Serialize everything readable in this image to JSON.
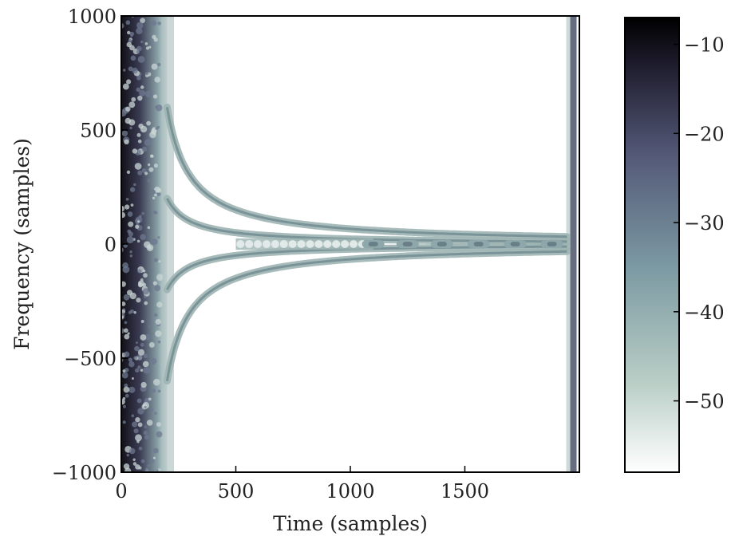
{
  "chart_data": {
    "type": "heatmap",
    "title": "",
    "xlabel": "Time (samples)",
    "ylabel": "Frequency (samples)",
    "xlim": [
      0,
      2000
    ],
    "ylim": [
      -1000,
      1000
    ],
    "xticks": [
      0,
      500,
      1000,
      1500
    ],
    "yticks": [
      -1000,
      -500,
      0,
      500,
      1000
    ],
    "xtick_labels": [
      "0",
      "500",
      "1000",
      "1500"
    ],
    "ytick_labels": [
      "−1000",
      "−500",
      "0",
      "500",
      "1000"
    ],
    "colorbar": {
      "range": [
        -58,
        -7
      ],
      "ticks": [
        -10,
        -20,
        -30,
        -40,
        -50
      ],
      "tick_labels": [
        "−10",
        "−20",
        "−30",
        "−40",
        "−50"
      ],
      "colormap": [
        "#ffffff",
        "#b8cdc5",
        "#7c9aa3",
        "#535877",
        "#1d1b2b",
        "#000000"
      ]
    },
    "grid": false,
    "features": {
      "dense_region_time": [
        0,
        200
      ],
      "right_edge_time": 1960,
      "hyperbola_branches": [
        {
          "direction": "up",
          "start_time": 200,
          "asymptote_frequency": 0
        },
        {
          "direction": "down",
          "start_time": 200,
          "asymptote_frequency": 0
        }
      ],
      "center_dashes_time": [
        1100,
        1250,
        1400,
        1560,
        1720,
        1880
      ]
    }
  }
}
